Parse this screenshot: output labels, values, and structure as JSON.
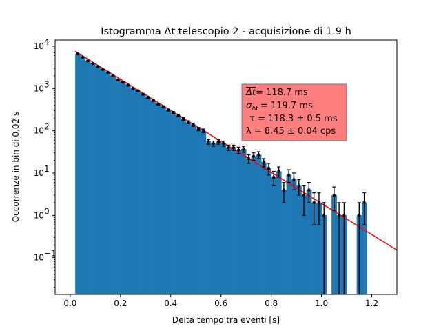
{
  "chart_data": {
    "type": "bar",
    "title": "Istogramma Δt telescopio 2 - acquisizione di 1.9 h",
    "xlabel": "Delta tempo tra eventi [s]",
    "ylabel": "Occorrenze in bin di 0.02 s",
    "xlim": [
      -0.06,
      1.3
    ],
    "ylim": [
      0.0135,
      14000
    ],
    "yscale": "log",
    "bin_width": 0.02,
    "x_ticks": [
      0.0,
      0.2,
      0.4,
      0.6,
      0.8,
      1.0,
      1.2
    ],
    "x_tick_labels": [
      "0.0",
      "0.2",
      "0.4",
      "0.6",
      "0.8",
      "1.0",
      "1.2"
    ],
    "y_ticks": [
      0.1,
      1,
      10,
      100,
      1000,
      10000
    ],
    "y_tick_labels": [
      "10",
      "10",
      "10",
      "10",
      "10",
      "10"
    ],
    "y_tick_exponents": [
      "−1",
      "0",
      "1",
      "2",
      "3",
      "4"
    ],
    "bar_color": "#1f77b4",
    "fit_color": "#ff0000",
    "point_color": "#000000",
    "x": [
      0.03,
      0.05,
      0.07,
      0.09,
      0.11,
      0.13,
      0.15,
      0.17,
      0.19,
      0.21,
      0.23,
      0.25,
      0.27,
      0.29,
      0.31,
      0.33,
      0.35,
      0.37,
      0.39,
      0.41,
      0.43,
      0.45,
      0.47,
      0.49,
      0.51,
      0.53,
      0.55,
      0.57,
      0.59,
      0.61,
      0.63,
      0.65,
      0.67,
      0.69,
      0.71,
      0.73,
      0.75,
      0.77,
      0.79,
      0.81,
      0.83,
      0.85,
      0.87,
      0.89,
      0.91,
      0.93,
      0.95,
      0.97,
      0.99,
      1.01,
      1.03,
      1.05,
      1.07,
      1.09,
      1.11,
      1.13,
      1.15,
      1.17
    ],
    "values": [
      6600,
      5500,
      4500,
      3900,
      3300,
      2800,
      2400,
      2000,
      1600,
      1400,
      1200,
      1000,
      880,
      730,
      620,
      520,
      430,
      370,
      310,
      270,
      230,
      190,
      160,
      140,
      110,
      100,
      55,
      50,
      55,
      50,
      40,
      40,
      35,
      37,
      22,
      25,
      27,
      18,
      13,
      8,
      11,
      4,
      9,
      7,
      5,
      3,
      4,
      2,
      2,
      1,
      0,
      3,
      1,
      1,
      0,
      0,
      1,
      2
    ],
    "errors": [
      81,
      74,
      67,
      62,
      57,
      53,
      49,
      45,
      40,
      37,
      35,
      32,
      30,
      27,
      25,
      23,
      21,
      19,
      18,
      16,
      15,
      14,
      13,
      12,
      10,
      10,
      7,
      7,
      7,
      7,
      6,
      6,
      6,
      6,
      5,
      5,
      5,
      4,
      4,
      3,
      3,
      2,
      3,
      3,
      2,
      2,
      2,
      1.4,
      1.4,
      1,
      0,
      1.7,
      1,
      1,
      0,
      0,
      1,
      1.4
    ],
    "fit": {
      "type": "exponential",
      "tau": 0.1183,
      "N": 8953,
      "x_start": 0.02,
      "x_end": 1.3
    },
    "annotation": {
      "line1": "= 118.7 ms",
      "line1_symbol": "Δt",
      "line2": "= 119.7 ms",
      "line2_symbol": "σ",
      "line2_subscript": "Δt",
      "line3": "τ = 118.3 ± 0.5 ms",
      "line4": "λ = 8.45 ± 0.04 cps",
      "background": "#ff7f7f"
    }
  }
}
